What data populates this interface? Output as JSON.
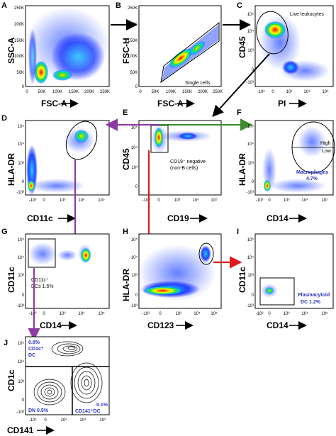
{
  "colors": {
    "purple_arrow": "#8e3aa3",
    "green_arrow": "#3d8c2f",
    "red_arrow": "#e01a1a",
    "blue_label": "#2b33c4"
  },
  "panels": {
    "A": {
      "letter": "A",
      "ylabel": "SSC-A",
      "xlabel": "FSC-A",
      "yticks": [
        "250K",
        "200K",
        "150K",
        "100K",
        "50K",
        "0"
      ],
      "xticks": [
        "0",
        "50K",
        "100K",
        "150K",
        "200K",
        "250K"
      ]
    },
    "B": {
      "letter": "B",
      "ylabel": "FSC-H",
      "xlabel": "FSC-A",
      "yticks": [
        "250K",
        "200K",
        "150K",
        "100K",
        "50K",
        "0"
      ],
      "xticks": [
        "0",
        "50K",
        "100K",
        "150K",
        "200K",
        "250K"
      ],
      "gate": "Single cells"
    },
    "C": {
      "letter": "C",
      "ylabel": "CD45",
      "xlabel": "PI",
      "yticks": [
        "10⁵",
        "10⁴",
        "10³",
        "0",
        "-10³"
      ],
      "xticks": [
        "-10³",
        "0",
        "10³",
        "10⁴",
        "10⁵"
      ],
      "gate": "Live leukocytes"
    },
    "D": {
      "letter": "D",
      "ylabel": "HLA-DR",
      "xlabel": "CD11c",
      "yticks": [
        "10⁵",
        "10⁴",
        "10³",
        "0",
        "-10³"
      ],
      "xticks": [
        "-10³",
        "0",
        "10³",
        "10⁴",
        "10⁵"
      ]
    },
    "E": {
      "letter": "E",
      "ylabel": "CD45",
      "xlabel": "CD19",
      "yticks": [
        "10⁵",
        "10⁴",
        "10³",
        "0"
      ],
      "xticks": [
        "-10³",
        "0",
        "10³",
        "10⁴",
        "10⁵"
      ],
      "gate_line1": "CD19⁻ negative",
      "gate_line2": "(non-B cells)"
    },
    "F": {
      "letter": "F",
      "ylabel": "HLA-DR",
      "xlabel": "CD14",
      "yticks": [
        "10⁵",
        "10⁴",
        "10³",
        "0",
        "-10³"
      ],
      "xticks": [
        "-10³",
        "0",
        "10³",
        "10⁴",
        "10⁵"
      ],
      "high": "High",
      "low": "Low",
      "gate_line1": "Macrophages",
      "gate_line2": "4.7%"
    },
    "G": {
      "letter": "G",
      "ylabel": "CD11c",
      "xlabel": "CD14",
      "yticks": [
        "10⁵",
        "10⁴",
        "10³",
        "0",
        "-10³"
      ],
      "xticks": [
        "-10³",
        "0",
        "10³",
        "10⁴",
        "10⁵"
      ],
      "gate_line1": "CD11c⁺",
      "gate_line2": "DCs 1.6%"
    },
    "H": {
      "letter": "H",
      "ylabel": "HLA-DR",
      "xlabel": "CD123",
      "yticks": [
        "10⁵",
        "10⁴",
        "10³",
        "0",
        "-10³"
      ],
      "xticks": [
        "-10³",
        "0",
        "10³",
        "10⁴",
        "10⁵"
      ]
    },
    "I": {
      "letter": "I",
      "ylabel": "CD11c",
      "xlabel": "CD14",
      "yticks": [
        "10⁵",
        "10⁴",
        "10³",
        "0",
        "-10³"
      ],
      "xticks": [
        "-10³",
        "0",
        "10³",
        "10⁴",
        "10⁵"
      ],
      "gate_line1": "Plasmacytoid",
      "gate_line2": "DC 1.2%"
    },
    "J": {
      "letter": "J",
      "ylabel": "CD1c",
      "xlabel": "CD141",
      "yticks": [
        "10⁵",
        "10⁴",
        "10³",
        "0",
        "-10³"
      ],
      "xticks": [
        "-10³",
        "0",
        "10³",
        "10⁴",
        "10⁵"
      ],
      "q1_line1": "0.8%",
      "q1_line2": "CD1c⁺",
      "q1_line3": "DC",
      "q3": "DN 0.5%",
      "q4_line1": "0.1%",
      "q4_line2": "CD141⁺DC"
    }
  }
}
